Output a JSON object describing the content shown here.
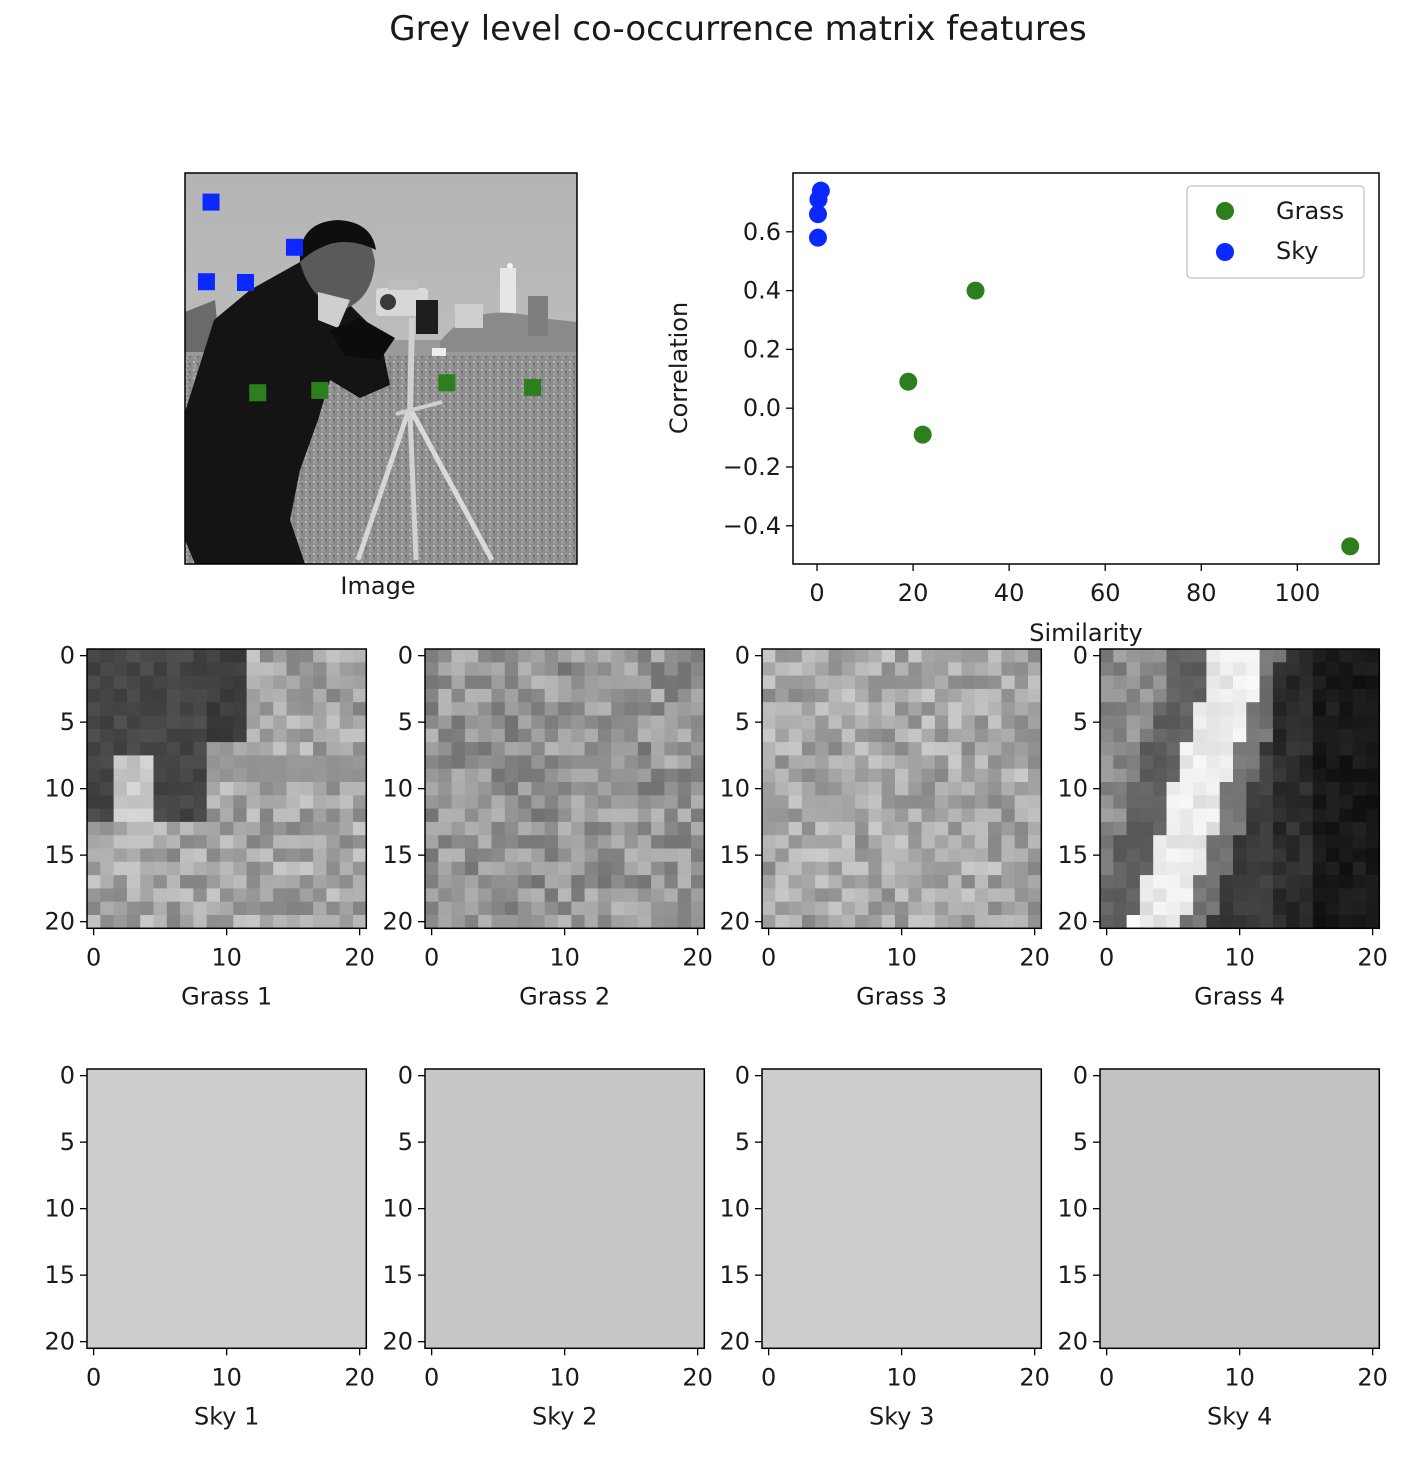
{
  "figure": {
    "title": "Grey level co-occurrence matrix features"
  },
  "image_panel": {
    "xlabel": "Image",
    "grass_marker_color": "#2d7f1e",
    "sky_marker_color": "#0a28ff",
    "sky_patch_locations": [
      [
        38,
        34
      ],
      [
        142,
        28
      ],
      [
        143,
        79
      ],
      [
        97,
        143
      ]
    ],
    "grass_patch_locations": [
      [
        280,
        454
      ],
      [
        287,
        95
      ],
      [
        284,
        176
      ],
      [
        274,
        342
      ]
    ]
  },
  "chart_data": [
    {
      "type": "scatter",
      "title": "",
      "xlabel": "Similarity",
      "ylabel": "Correlation",
      "xlim": [
        -5,
        117
      ],
      "ylim": [
        -0.53,
        0.8
      ],
      "xticks": [
        0,
        20,
        40,
        60,
        80,
        100
      ],
      "yticks": [
        -0.4,
        -0.2,
        0.0,
        0.2,
        0.4,
        0.6
      ],
      "ytick_labels": [
        "−0.4",
        "−0.2",
        "0.0",
        "0.2",
        "0.4",
        "0.6"
      ],
      "grid": false,
      "legend": "top-right",
      "series": [
        {
          "name": "Grass",
          "color": "#2d7f1e",
          "points": [
            [
              33,
              0.4
            ],
            [
              19,
              0.09
            ],
            [
              22,
              -0.09
            ],
            [
              111,
              -0.47
            ]
          ]
        },
        {
          "name": "Sky",
          "color": "#0a28ff",
          "points": [
            [
              0.8,
              0.74
            ],
            [
              0.3,
              0.71
            ],
            [
              0.2,
              0.66
            ],
            [
              0.2,
              0.58
            ]
          ]
        }
      ]
    }
  ],
  "patches": {
    "xticks": [
      "0",
      "10",
      "20"
    ],
    "yticks": [
      "0",
      "5",
      "10",
      "15",
      "20"
    ],
    "grass": [
      {
        "label": "Grass 1",
        "kind": "corner"
      },
      {
        "label": "Grass 2",
        "kind": "texture",
        "base": 150,
        "spread": 36
      },
      {
        "label": "Grass 3",
        "kind": "texture",
        "base": 168,
        "spread": 34
      },
      {
        "label": "Grass 4",
        "kind": "tripod"
      }
    ],
    "sky": [
      {
        "label": "Sky 1",
        "shade": "#cdcdcd"
      },
      {
        "label": "Sky 2",
        "shade": "#c7c7c7"
      },
      {
        "label": "Sky 3",
        "shade": "#cccccc"
      },
      {
        "label": "Sky 4",
        "shade": "#c2c2c2"
      }
    ]
  }
}
